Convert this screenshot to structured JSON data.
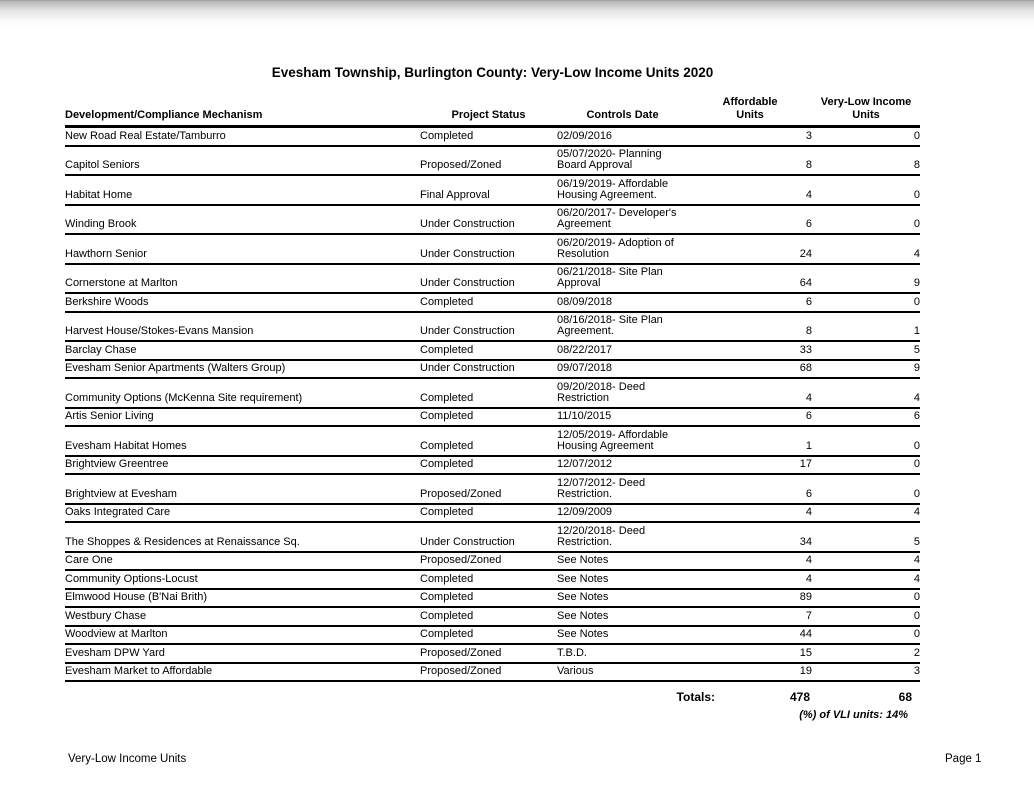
{
  "report": {
    "title": "Evesham Township, Burlington County: Very-Low Income Units 2020",
    "footer_left": "Very-Low Income Units",
    "footer_right": "Page 1"
  },
  "table": {
    "columns": [
      {
        "lines": [
          "Development/Compliance Mechanism"
        ]
      },
      {
        "lines": [
          "Project Status"
        ]
      },
      {
        "lines": [
          "Controls Date"
        ]
      },
      {
        "lines": [
          "Affordable",
          "Units"
        ]
      },
      {
        "lines": [
          "Very-Low Income",
          "Units"
        ]
      }
    ],
    "rows": [
      {
        "development": "New Road Real Estate/Tamburro",
        "status": "Completed",
        "date": [
          "02/09/2016"
        ],
        "affordable": "3",
        "vli": "0"
      },
      {
        "development": "Capitol Seniors",
        "status": "Proposed/Zoned",
        "date": [
          "05/07/2020- Planning",
          "Board Approval"
        ],
        "affordable": "8",
        "vli": "8"
      },
      {
        "development": "Habitat Home",
        "status": "Final Approval",
        "date": [
          "06/19/2019- Affordable",
          "Housing Agreement."
        ],
        "affordable": "4",
        "vli": "0"
      },
      {
        "development": "Winding Brook",
        "status": "Under Construction",
        "date": [
          "06/20/2017- Developer's",
          "Agreement"
        ],
        "affordable": "6",
        "vli": "0"
      },
      {
        "development": "Hawthorn Senior",
        "status": "Under Construction",
        "date": [
          "06/20/2019- Adoption of",
          "Resolution"
        ],
        "affordable": "24",
        "vli": "4"
      },
      {
        "development": "Cornerstone at Marlton",
        "status": "Under Construction",
        "date": [
          "06/21/2018- Site Plan",
          "Approval"
        ],
        "affordable": "64",
        "vli": "9"
      },
      {
        "development": "Berkshire Woods",
        "status": "Completed",
        "date": [
          "08/09/2018"
        ],
        "affordable": "6",
        "vli": "0"
      },
      {
        "development": "Harvest House/Stokes-Evans Mansion",
        "status": "Under Construction",
        "date": [
          "08/16/2018- Site Plan",
          "Agreement."
        ],
        "affordable": "8",
        "vli": "1"
      },
      {
        "development": "Barclay Chase",
        "status": "Completed",
        "date": [
          "08/22/2017"
        ],
        "affordable": "33",
        "vli": "5"
      },
      {
        "development": "Evesham Senior Apartments (Walters Group)",
        "status": "Under Construction",
        "date": [
          "09/07/2018"
        ],
        "affordable": "68",
        "vli": "9"
      },
      {
        "development": "Community Options (McKenna Site requirement)",
        "status": "Completed",
        "date": [
          "09/20/2018- Deed",
          "Restriction"
        ],
        "affordable": "4",
        "vli": "4"
      },
      {
        "development": "Artis Senior Living",
        "status": "Completed",
        "date": [
          "11/10/2015"
        ],
        "affordable": "6",
        "vli": "6"
      },
      {
        "development": "Evesham Habitat Homes",
        "status": "Completed",
        "date": [
          "12/05/2019- Affordable",
          "Housing Agreement"
        ],
        "affordable": "1",
        "vli": "0"
      },
      {
        "development": "Brightview Greentree",
        "status": "Completed",
        "date": [
          "12/07/2012"
        ],
        "affordable": "17",
        "vli": "0"
      },
      {
        "development": "Brightview at Evesham",
        "status": "Proposed/Zoned",
        "date": [
          "12/07/2012- Deed",
          "Restriction."
        ],
        "affordable": "6",
        "vli": "0"
      },
      {
        "development": "Oaks Integrated Care",
        "status": "Completed",
        "date": [
          "12/09/2009"
        ],
        "affordable": "4",
        "vli": "4"
      },
      {
        "development": "The Shoppes & Residences at Renaissance Sq.",
        "status": "Under Construction",
        "date": [
          "12/20/2018- Deed",
          "Restriction."
        ],
        "affordable": "34",
        "vli": "5"
      },
      {
        "development": "Care One",
        "status": "Proposed/Zoned",
        "date": [
          "See Notes"
        ],
        "affordable": "4",
        "vli": "4"
      },
      {
        "development": "Community Options-Locust",
        "status": "Completed",
        "date": [
          "See Notes"
        ],
        "affordable": "4",
        "vli": "4"
      },
      {
        "development": "Elmwood House (B'Nai Brith)",
        "status": "Completed",
        "date": [
          "See Notes"
        ],
        "affordable": "89",
        "vli": "0"
      },
      {
        "development": "Westbury Chase",
        "status": "Completed",
        "date": [
          "See Notes"
        ],
        "affordable": "7",
        "vli": "0"
      },
      {
        "development": "Woodview at Marlton",
        "status": "Completed",
        "date": [
          "See Notes"
        ],
        "affordable": "44",
        "vli": "0"
      },
      {
        "development": "Evesham DPW Yard",
        "status": "Proposed/Zoned",
        "date": [
          "T.B.D."
        ],
        "affordable": "15",
        "vli": "2"
      },
      {
        "development": "Evesham Market to Affordable",
        "status": "Proposed/Zoned",
        "date": [
          "Various"
        ],
        "affordable": "19",
        "vli": "3"
      }
    ],
    "totals": {
      "label": "Totals:",
      "affordable": "478",
      "vli": "68"
    },
    "note": "(%) of VLI units: 14%"
  }
}
